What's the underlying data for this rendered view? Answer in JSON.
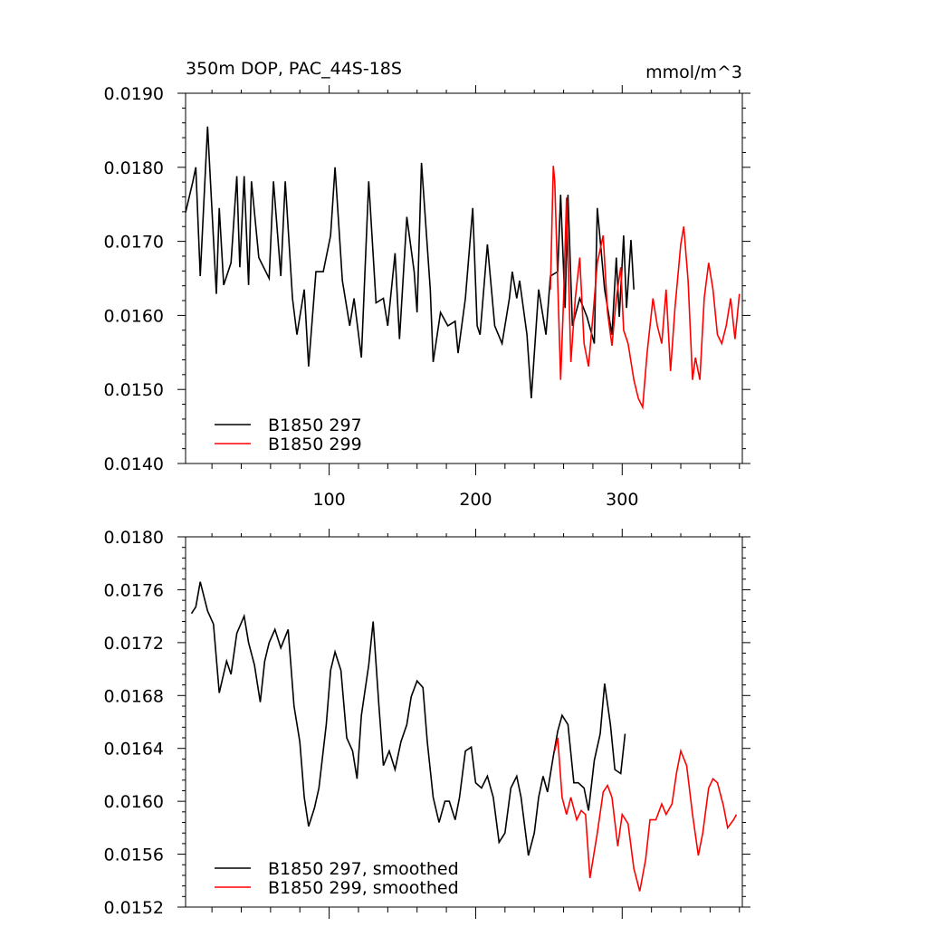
{
  "chart_data": [
    {
      "type": "line",
      "title": "350m DOP, PAC_44S-18S",
      "units": "mmol/m^3",
      "xlim": [
        2,
        382
      ],
      "xticks": [
        100,
        200,
        300
      ],
      "x_tick_labels": true,
      "ylim": [
        0.014,
        0.019
      ],
      "yticks": [
        {
          "value": 0.014,
          "label": "0.0140"
        },
        {
          "value": 0.015,
          "label": "0.0150"
        },
        {
          "value": 0.016,
          "label": "0.0160"
        },
        {
          "value": 0.017,
          "label": "0.0170"
        },
        {
          "value": 0.018,
          "label": "0.0180"
        },
        {
          "value": 0.019,
          "label": "0.0190"
        }
      ],
      "legend": "lower left",
      "series": [
        {
          "name": "B1850 297",
          "color": "#000000",
          "x": [
            2,
            7,
            9,
            12,
            17,
            23,
            25,
            28,
            33,
            37,
            39,
            42,
            45,
            47,
            52,
            59,
            62,
            67,
            70,
            75,
            78,
            83,
            86,
            91,
            96,
            101,
            104,
            109,
            114,
            117,
            122,
            127,
            132,
            137,
            140,
            145,
            148,
            153,
            158,
            160,
            163,
            169,
            171,
            176,
            181,
            186,
            188,
            193,
            198,
            201,
            203,
            208,
            213,
            218,
            223,
            225,
            228,
            230,
            235,
            238,
            243,
            248,
            251,
            256,
            258,
            261,
            263,
            266,
            271,
            276,
            281,
            283,
            288,
            293,
            296,
            298,
            301,
            303,
            306,
            308
          ],
          "values": [
            0.01739,
            0.01781,
            0.018,
            0.01653,
            0.01855,
            0.01629,
            0.01745,
            0.01641,
            0.01671,
            0.01788,
            0.01665,
            0.01788,
            0.01641,
            0.01781,
            0.01678,
            0.0165,
            0.01781,
            0.01653,
            0.01781,
            0.01623,
            0.01574,
            0.01635,
            0.01531,
            0.01659,
            0.01659,
            0.01708,
            0.018,
            0.01647,
            0.01586,
            0.01623,
            0.01543,
            0.01781,
            0.01617,
            0.01623,
            0.01586,
            0.01684,
            0.01568,
            0.01733,
            0.01659,
            0.01604,
            0.01806,
            0.01635,
            0.01537,
            0.01604,
            0.01586,
            0.01592,
            0.01549,
            0.01623,
            0.01745,
            0.01586,
            0.01574,
            0.01696,
            0.01586,
            0.01562,
            0.01623,
            0.01659,
            0.01623,
            0.01647,
            0.01574,
            0.01488,
            0.01635,
            0.01574,
            0.01653,
            0.01659,
            0.01763,
            0.0161,
            0.01763,
            0.01586,
            0.01623,
            0.01598,
            0.01562,
            0.01745,
            0.01635,
            0.01574,
            0.01678,
            0.01598,
            0.01708,
            0.0161,
            0.01702,
            0.01635
          ]
        },
        {
          "name": "B1850 299",
          "color": "#ff0000",
          "x": [
            251,
            253,
            254,
            258,
            260,
            262,
            265,
            268,
            271,
            274,
            277,
            280,
            283,
            287,
            290,
            293,
            296,
            299,
            301,
            304,
            308,
            311,
            314,
            317,
            321,
            324,
            327,
            330,
            333,
            336,
            340,
            342,
            345,
            348,
            350,
            353,
            356,
            359,
            362,
            365,
            368,
            371,
            374,
            377,
            380
          ],
          "values": [
            0.01635,
            0.01802,
            0.01781,
            0.01513,
            0.01623,
            0.01759,
            0.01537,
            0.01623,
            0.01678,
            0.01562,
            0.01531,
            0.01598,
            0.01671,
            0.01708,
            0.01604,
            0.01559,
            0.01623,
            0.01665,
            0.0158,
            0.01562,
            0.01513,
            0.01488,
            0.01476,
            0.01549,
            0.01623,
            0.01586,
            0.01562,
            0.01635,
            0.01525,
            0.0161,
            0.01696,
            0.0172,
            0.01647,
            0.01513,
            0.01543,
            0.01513,
            0.01623,
            0.01671,
            0.01635,
            0.01574,
            0.01562,
            0.01586,
            0.01623,
            0.01568,
            0.01629
          ]
        }
      ]
    },
    {
      "type": "line",
      "xlim": [
        2,
        382
      ],
      "xticks": [
        100,
        200,
        300
      ],
      "x_tick_labels": false,
      "ylim": [
        0.0152,
        0.018
      ],
      "yticks": [
        0.0152,
        0.0156,
        {
          "value": 0.016,
          "label": "0.0160"
        },
        0.0164,
        0.0168,
        0.0172,
        0.0176,
        {
          "value": 0.018,
          "label": "0.0180"
        }
      ],
      "legend": "lower left",
      "series": [
        {
          "name": "B1850 297, smoothed",
          "color": "#000000",
          "x": [
            6,
            9,
            12,
            17,
            21,
            25,
            30,
            33,
            37,
            42,
            45,
            49,
            53,
            56,
            59,
            63,
            67,
            72,
            76,
            80,
            83,
            86,
            90,
            93,
            98,
            101,
            104,
            108,
            112,
            116,
            119,
            122,
            127,
            130,
            134,
            137,
            141,
            145,
            149,
            153,
            156,
            160,
            164,
            167,
            171,
            175,
            179,
            182,
            186,
            189,
            193,
            197,
            200,
            204,
            208,
            212,
            216,
            220,
            224,
            228,
            231,
            236,
            240,
            243,
            246,
            249,
            253,
            256,
            259,
            263,
            267,
            270,
            274,
            277,
            281,
            285,
            288,
            292,
            295,
            299,
            302
          ],
          "values": [
            0.01742,
            0.01747,
            0.01766,
            0.01744,
            0.01734,
            0.01682,
            0.01706,
            0.01696,
            0.01727,
            0.0174,
            0.0172,
            0.01703,
            0.01675,
            0.01706,
            0.0172,
            0.0173,
            0.01716,
            0.0173,
            0.01672,
            0.01645,
            0.01603,
            0.01581,
            0.01595,
            0.0161,
            0.01658,
            0.01699,
            0.01713,
            0.01699,
            0.01648,
            0.01638,
            0.01617,
            0.01665,
            0.01703,
            0.01736,
            0.01672,
            0.01627,
            0.01638,
            0.01624,
            0.01645,
            0.01658,
            0.01679,
            0.01691,
            0.01686,
            0.01645,
            0.01603,
            0.01584,
            0.016,
            0.016,
            0.01586,
            0.01603,
            0.01638,
            0.01641,
            0.01614,
            0.0161,
            0.01619,
            0.01603,
            0.01569,
            0.01576,
            0.0161,
            0.01619,
            0.01603,
            0.01559,
            0.01576,
            0.01603,
            0.01619,
            0.01607,
            0.01634,
            0.01653,
            0.01665,
            0.01658,
            0.01614,
            0.01614,
            0.0161,
            0.01593,
            0.01631,
            0.01651,
            0.01689,
            0.01658,
            0.01624,
            0.01621,
            0.01651
          ]
        },
        {
          "name": "B1850 299, smoothed",
          "color": "#ff0000",
          "x": [
            254,
            256,
            259,
            262,
            265,
            269,
            272,
            275,
            278,
            283,
            287,
            290,
            293,
            297,
            300,
            304,
            308,
            312,
            316,
            319,
            323,
            327,
            330,
            334,
            337,
            340,
            344,
            348,
            352,
            355,
            359,
            362,
            365,
            369,
            372,
            376,
            378
          ],
          "values": [
            0.01638,
            0.01648,
            0.01603,
            0.0159,
            0.01603,
            0.01586,
            0.01593,
            0.0159,
            0.01542,
            0.01576,
            0.01607,
            0.01612,
            0.01603,
            0.01566,
            0.0159,
            0.01583,
            0.01549,
            0.01532,
            0.01556,
            0.01586,
            0.01586,
            0.01598,
            0.0159,
            0.01598,
            0.01621,
            0.01638,
            0.01627,
            0.0159,
            0.01559,
            0.01576,
            0.0161,
            0.01617,
            0.01614,
            0.01597,
            0.0158,
            0.01586,
            0.0159
          ]
        }
      ]
    }
  ]
}
